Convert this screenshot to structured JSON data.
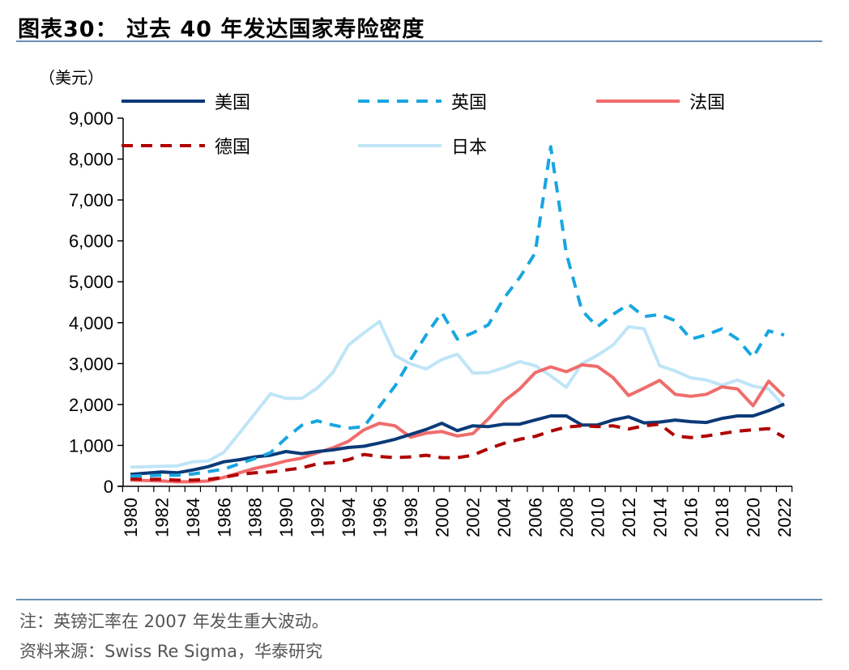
{
  "header": {
    "title": "图表30：  过去 40 年发达国家寿险密度",
    "unit": "（美元）"
  },
  "footer": {
    "note": "注：英镑汇率在 2007 年发生重大波动。",
    "source": "资料来源：Swiss Re Sigma，华泰研究"
  },
  "chart_data": {
    "type": "line",
    "title": "过去 40 年发达国家寿险密度",
    "xlabel": "",
    "ylabel": "（美元）",
    "ylim": [
      0,
      9000
    ],
    "yticks": [
      0,
      1000,
      2000,
      3000,
      4000,
      5000,
      6000,
      7000,
      8000,
      9000
    ],
    "ytick_labels": [
      "0",
      "1,000",
      "2,000",
      "3,000",
      "4,000",
      "5,000",
      "6,000",
      "7,000",
      "8,000",
      "9,000"
    ],
    "x": [
      1980,
      1981,
      1982,
      1983,
      1984,
      1985,
      1986,
      1987,
      1988,
      1989,
      1990,
      1991,
      1992,
      1993,
      1994,
      1995,
      1996,
      1997,
      1998,
      1999,
      2000,
      2001,
      2002,
      2003,
      2004,
      2005,
      2006,
      2007,
      2008,
      2009,
      2010,
      2011,
      2012,
      2013,
      2014,
      2015,
      2016,
      2017,
      2018,
      2019,
      2020,
      2021,
      2022
    ],
    "xtick_labels": [
      "1980",
      "1982",
      "1984",
      "1986",
      "1988",
      "1990",
      "1992",
      "1994",
      "1996",
      "1998",
      "2000",
      "2002",
      "2004",
      "2006",
      "2008",
      "2010",
      "2012",
      "2014",
      "2016",
      "2018",
      "2020",
      "2022"
    ],
    "grid": false,
    "legend_position": "top",
    "series": [
      {
        "name": "美国",
        "color": "#0b3a78",
        "dash": "solid",
        "values": [
          290,
          320,
          350,
          330,
          400,
          480,
          600,
          650,
          720,
          760,
          850,
          800,
          850,
          890,
          950,
          980,
          1060,
          1150,
          1270,
          1390,
          1540,
          1360,
          1480,
          1460,
          1520,
          1520,
          1620,
          1720,
          1720,
          1500,
          1500,
          1620,
          1700,
          1550,
          1570,
          1620,
          1580,
          1560,
          1660,
          1720,
          1720,
          1850,
          2010
        ]
      },
      {
        "name": "英国",
        "color": "#18a6e0",
        "dash": "dashed",
        "values": [
          250,
          260,
          270,
          270,
          300,
          360,
          420,
          550,
          680,
          820,
          1180,
          1490,
          1600,
          1500,
          1420,
          1460,
          1950,
          2450,
          3100,
          3700,
          4250,
          3600,
          3750,
          3950,
          4600,
          5100,
          5700,
          8300,
          5700,
          4300,
          3900,
          4200,
          4450,
          4150,
          4200,
          4050,
          3600,
          3700,
          3850,
          3600,
          3150,
          3800,
          3700
        ]
      },
      {
        "name": "法国",
        "color": "#f06c6c",
        "dash": "solid",
        "values": [
          150,
          140,
          130,
          110,
          110,
          130,
          220,
          330,
          440,
          520,
          620,
          690,
          820,
          940,
          1100,
          1380,
          1540,
          1480,
          1200,
          1300,
          1340,
          1230,
          1290,
          1650,
          2080,
          2380,
          2780,
          2920,
          2800,
          2970,
          2930,
          2660,
          2220,
          2400,
          2590,
          2250,
          2200,
          2250,
          2430,
          2380,
          1970,
          2570,
          2200
        ]
      },
      {
        "name": "德国",
        "color": "#b00000",
        "dash": "dashed",
        "values": [
          180,
          170,
          170,
          150,
          150,
          170,
          220,
          290,
          330,
          350,
          400,
          450,
          550,
          580,
          650,
          780,
          730,
          700,
          720,
          760,
          700,
          700,
          760,
          920,
          1050,
          1150,
          1220,
          1350,
          1450,
          1480,
          1460,
          1480,
          1400,
          1480,
          1520,
          1230,
          1190,
          1230,
          1290,
          1350,
          1380,
          1410,
          1200
        ]
      },
      {
        "name": "日本",
        "color": "#bfe5f7",
        "dash": "solid",
        "values": [
          470,
          480,
          490,
          500,
          600,
          620,
          830,
          1300,
          1780,
          2260,
          2150,
          2150,
          2400,
          2780,
          3450,
          3750,
          4030,
          3200,
          2990,
          2870,
          3100,
          3230,
          2770,
          2780,
          2900,
          3050,
          2950,
          2700,
          2420,
          3000,
          3200,
          3450,
          3900,
          3850,
          2950,
          2820,
          2650,
          2600,
          2470,
          2600,
          2450,
          2380,
          1950
        ]
      }
    ]
  }
}
